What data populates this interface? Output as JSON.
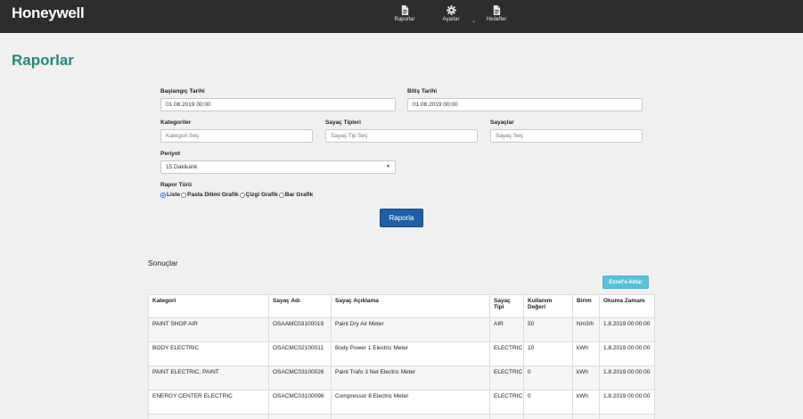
{
  "header": {
    "logo": "Honeywell",
    "nav": [
      {
        "label": "Raporlar",
        "icon": "document-icon"
      },
      {
        "label": "Ayarlar",
        "icon": "gear-icon"
      },
      {
        "label": "Hedefler",
        "icon": "document-icon"
      }
    ],
    "dropdown_caret": "⌄"
  },
  "page": {
    "title": "Raporlar"
  },
  "form": {
    "start_label": "Başlangıç Tarihi",
    "start_value": "01.08.2019 00:00",
    "end_label": "Bitiş Tarihi",
    "end_value": "01.08.2019 00:00",
    "categories_label": "Kategoriler",
    "categories_placeholder": "Kategori Seç",
    "meter_types_label": "Sayaç Tipleri",
    "meter_types_placeholder": "Sayaç Tip Seç",
    "meters_label": "Sayaçlar",
    "meters_placeholder": "Sayaç Seç",
    "period_label": "Periyot",
    "period_value": "15 Dakikalık",
    "report_type_label": "Rapor Türü",
    "report_types": [
      {
        "label": "Liste",
        "selected": true
      },
      {
        "label": "Pasta Dilimi Grafik",
        "selected": false
      },
      {
        "label": "Çizgi Grafik",
        "selected": false
      },
      {
        "label": "Bar Grafik",
        "selected": false
      }
    ],
    "submit_label": "Raporla"
  },
  "results": {
    "title": "Sonuçlar",
    "export_label": "Excel'e Aktar",
    "columns": [
      "Kategori",
      "Sayaç Adı",
      "Sayaç Açıklama",
      "Sayaç Tipi",
      "Kullanım Değeri",
      "Birim",
      "Okuma Zamanı"
    ],
    "rows": [
      [
        "PAINT SHOP AIR",
        "OSAAMC03100019",
        "Paint Dry Air Meter",
        "AIR",
        "50",
        "Nm3/h",
        "1.8.2019 00:00:00"
      ],
      [
        "BODY ELECTRIC",
        "OSACMC02100011",
        "Body Power 1 Electric Meter",
        "ELECTRIC",
        "10",
        "kWh",
        "1.8.2019 00:00:00"
      ],
      [
        "PAINT ELECTRIC, PAINT",
        "OSACMC03100026",
        "Paint Trafo 3 Net Electric Meter",
        "ELECTRIC",
        "0",
        "kWh",
        "1.8.2019 00:00:00"
      ],
      [
        "ENERGY CENTER ELECTRIC",
        "OSACMC03100096",
        "Compressor 8 Electric Meter",
        "ELECTRIC",
        "0",
        "kWh",
        "1.8.2019 00:00:00"
      ],
      [
        "",
        "",
        "",
        "",
        "",
        "",
        ""
      ]
    ]
  }
}
